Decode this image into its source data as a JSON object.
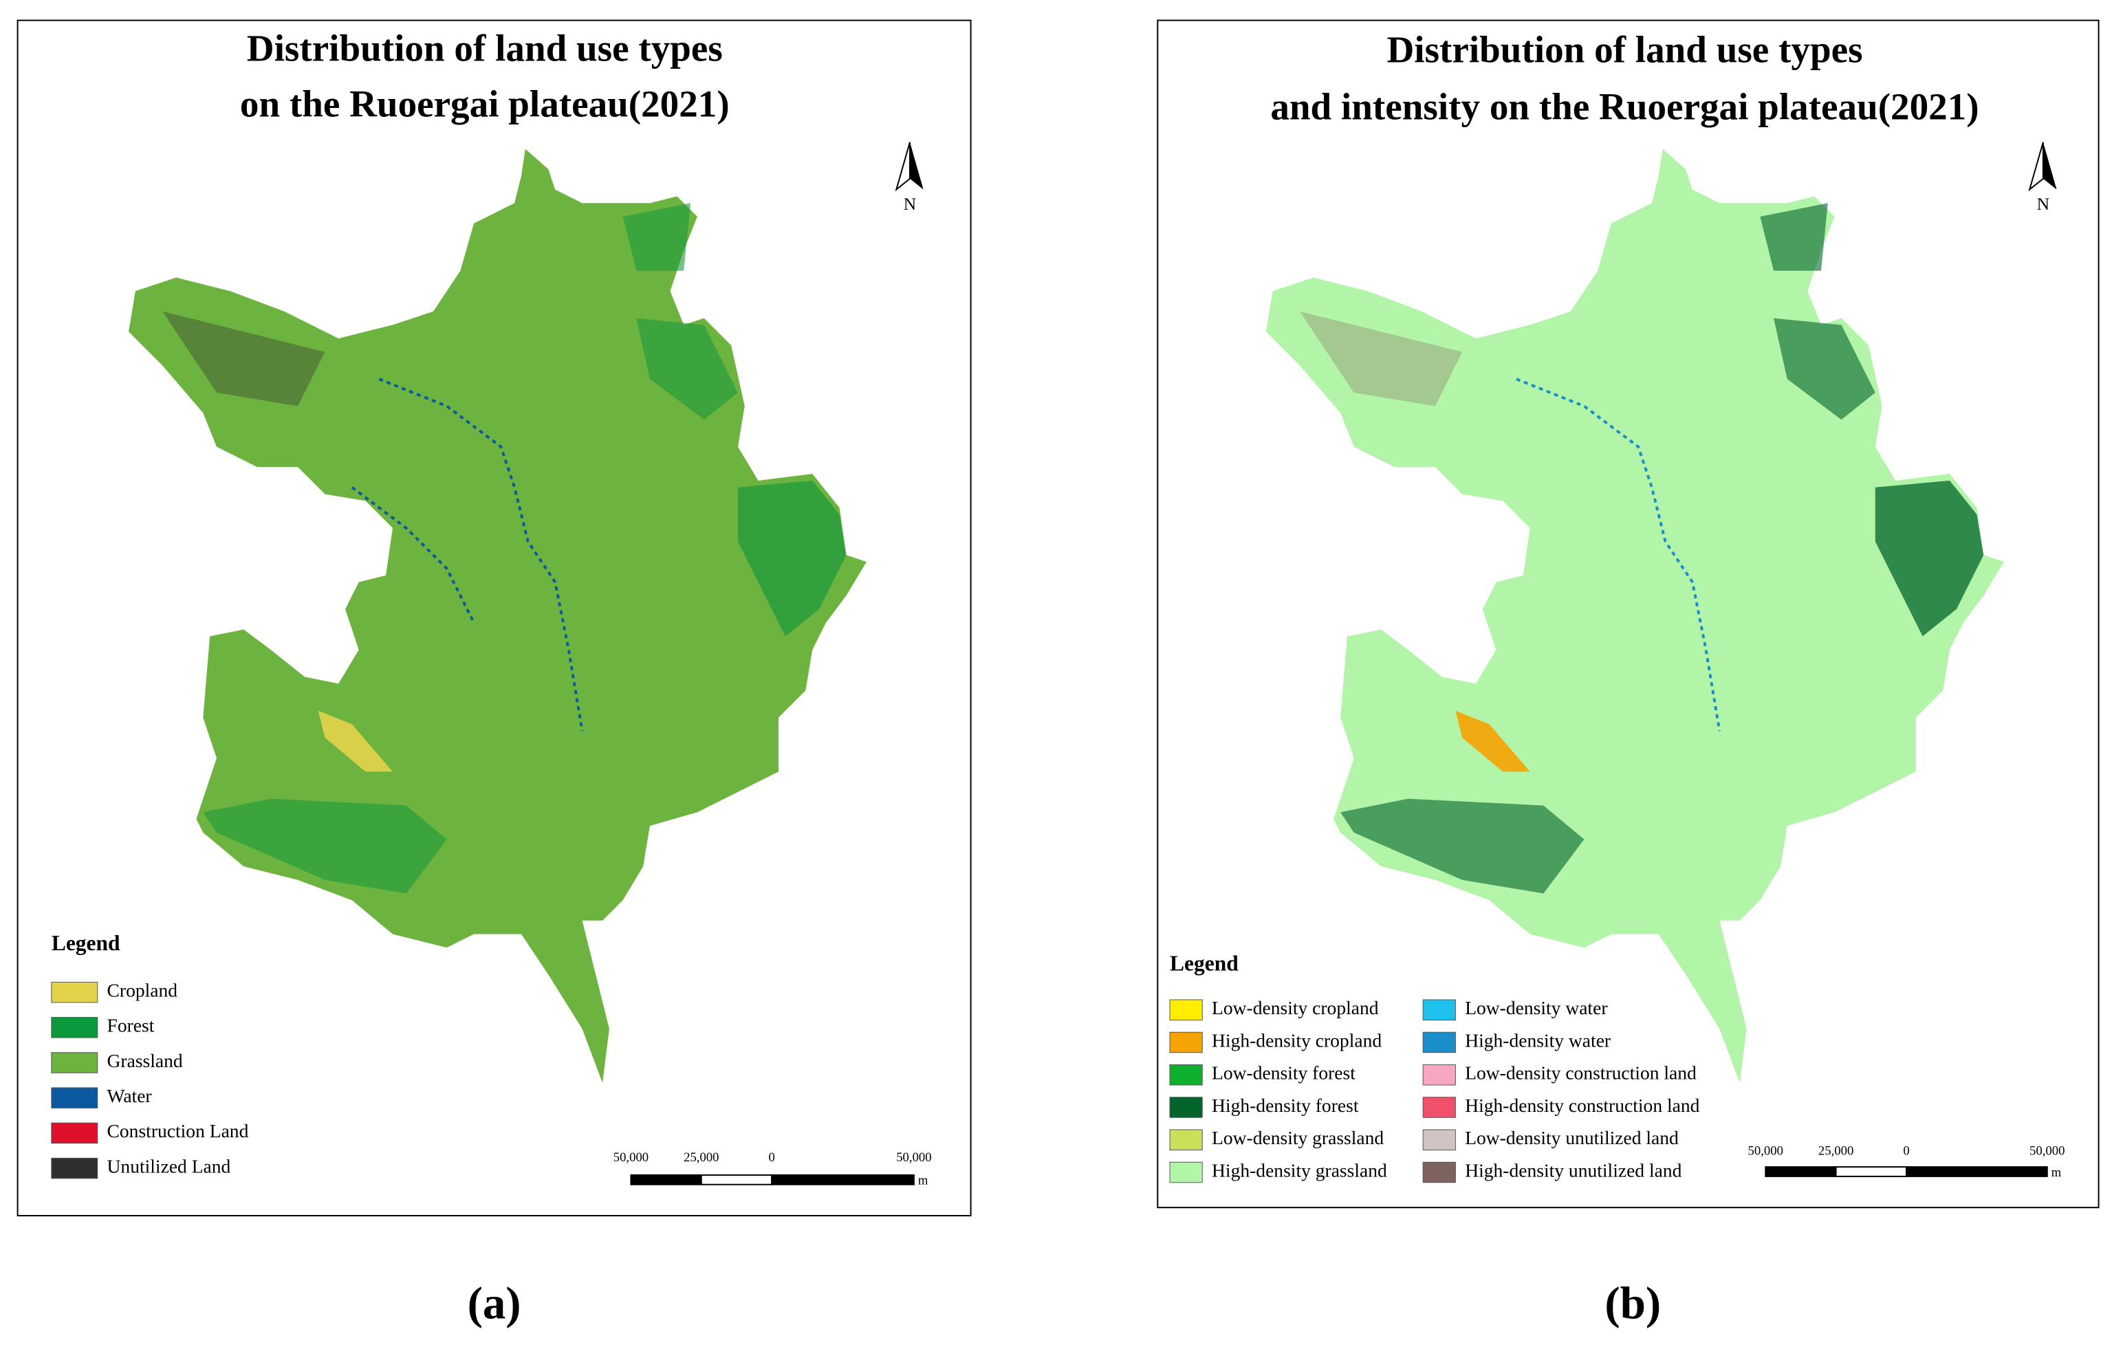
{
  "panels": [
    {
      "title": [
        "Distribution of land use types",
        "on the Ruoergai plateau(2021)"
      ],
      "north": "N",
      "legend": {
        "title": "Legend",
        "items": [
          {
            "label": "Cropland",
            "color": "#e3d34a"
          },
          {
            "label": "Forest",
            "color": "#0a9a3c"
          },
          {
            "label": "Grassland",
            "color": "#6db33f"
          },
          {
            "label": "Water",
            "color": "#0b5aa0"
          },
          {
            "label": "Construction Land",
            "color": "#e0102a"
          },
          {
            "label": "Unutilized Land",
            "color": "#2f2f2f"
          }
        ]
      },
      "scale": {
        "labels": [
          "50,000",
          "25,000",
          "0",
          "50,000"
        ],
        "unit": "m"
      },
      "caption": "(a)"
    },
    {
      "title": [
        "Distribution of land use types",
        "and intensity on the Ruoergai plateau(2021)"
      ],
      "north": "N",
      "legend": {
        "title": "Legend",
        "items": [
          {
            "label": "Low-density cropland",
            "color": "#ffee00"
          },
          {
            "label": "High-density cropland",
            "color": "#f5a300"
          },
          {
            "label": "Low-density forest",
            "color": "#0fb030"
          },
          {
            "label": "High-density forest",
            "color": "#03642c"
          },
          {
            "label": "Low-density grassland",
            "color": "#c8e05a"
          },
          {
            "label": "High-density grassland",
            "color": "#b3f5a8"
          },
          {
            "label": "Low-density water",
            "color": "#1ec0ec"
          },
          {
            "label": "High-density  water",
            "color": "#1a8ec8"
          },
          {
            "label": "Low-density construction land",
            "color": "#f7a8c0"
          },
          {
            "label": "High-density construction land",
            "color": "#f0506a"
          },
          {
            "label": "Low-density unutilized  land",
            "color": "#d0c3c4"
          },
          {
            "label": "High-density  unutilized  land",
            "color": "#7e625e"
          }
        ]
      },
      "scale": {
        "labels": [
          "50,000",
          "25,000",
          "0",
          "50,000"
        ],
        "unit": "m"
      },
      "caption": "(b)"
    }
  ]
}
